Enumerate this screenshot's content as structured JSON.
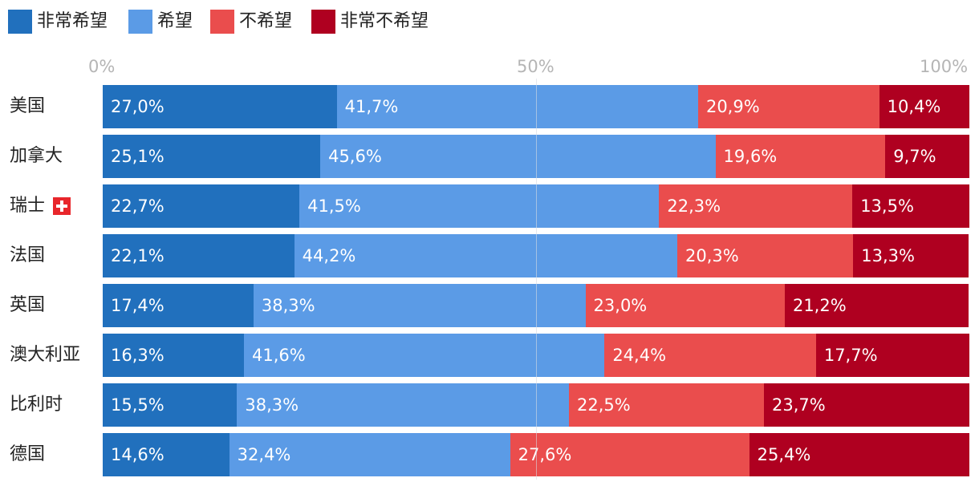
{
  "chart_data": {
    "type": "bar",
    "orientation": "horizontal",
    "stacked": true,
    "normalized": true,
    "categories": [
      "美国",
      "加拿大",
      "瑞士",
      "法国",
      "英国",
      "澳大利亚",
      "比利时",
      "德国"
    ],
    "series": [
      {
        "name": "非常希望",
        "color": "#2170bd",
        "values": [
          27.0,
          25.1,
          22.7,
          22.1,
          17.4,
          16.3,
          15.5,
          14.6
        ],
        "labels": [
          "27,0%",
          "25,1%",
          "22,7%",
          "22,1%",
          "17,4%",
          "16,3%",
          "15,5%",
          "14,6%"
        ]
      },
      {
        "name": "希望",
        "color": "#5b9be6",
        "values": [
          41.7,
          45.6,
          41.5,
          44.2,
          38.3,
          41.6,
          38.3,
          32.4
        ],
        "labels": [
          "41,7%",
          "45,6%",
          "41,5%",
          "44,2%",
          "38,3%",
          "41,6%",
          "38,3%",
          "32,4%"
        ]
      },
      {
        "name": "不希望",
        "color": "#ea4d4d",
        "values": [
          20.9,
          19.6,
          22.3,
          20.3,
          23.0,
          24.4,
          22.5,
          27.6
        ],
        "labels": [
          "20,9%",
          "19,6%",
          "22,3%",
          "20,3%",
          "23,0%",
          "24,4%",
          "22,5%",
          "27,6%"
        ]
      },
      {
        "name": "非常不希望",
        "color": "#af0020",
        "values": [
          10.4,
          9.7,
          13.5,
          13.3,
          21.2,
          17.7,
          23.7,
          25.4
        ],
        "labels": [
          "10,4%",
          "9,7%",
          "13,5%",
          "13,3%",
          "21,2%",
          "17,7%",
          "23,7%",
          "25,4%"
        ]
      }
    ],
    "xlim": [
      0,
      100
    ],
    "ticks": [
      {
        "value": 0,
        "label": "0%"
      },
      {
        "value": 50,
        "label": "50%"
      },
      {
        "value": 100,
        "label": "100%"
      }
    ],
    "legend_position": "top-left",
    "annotations": [
      {
        "category": "瑞士",
        "icon": "swiss-flag-icon",
        "color": "#e8262b"
      }
    ]
  }
}
